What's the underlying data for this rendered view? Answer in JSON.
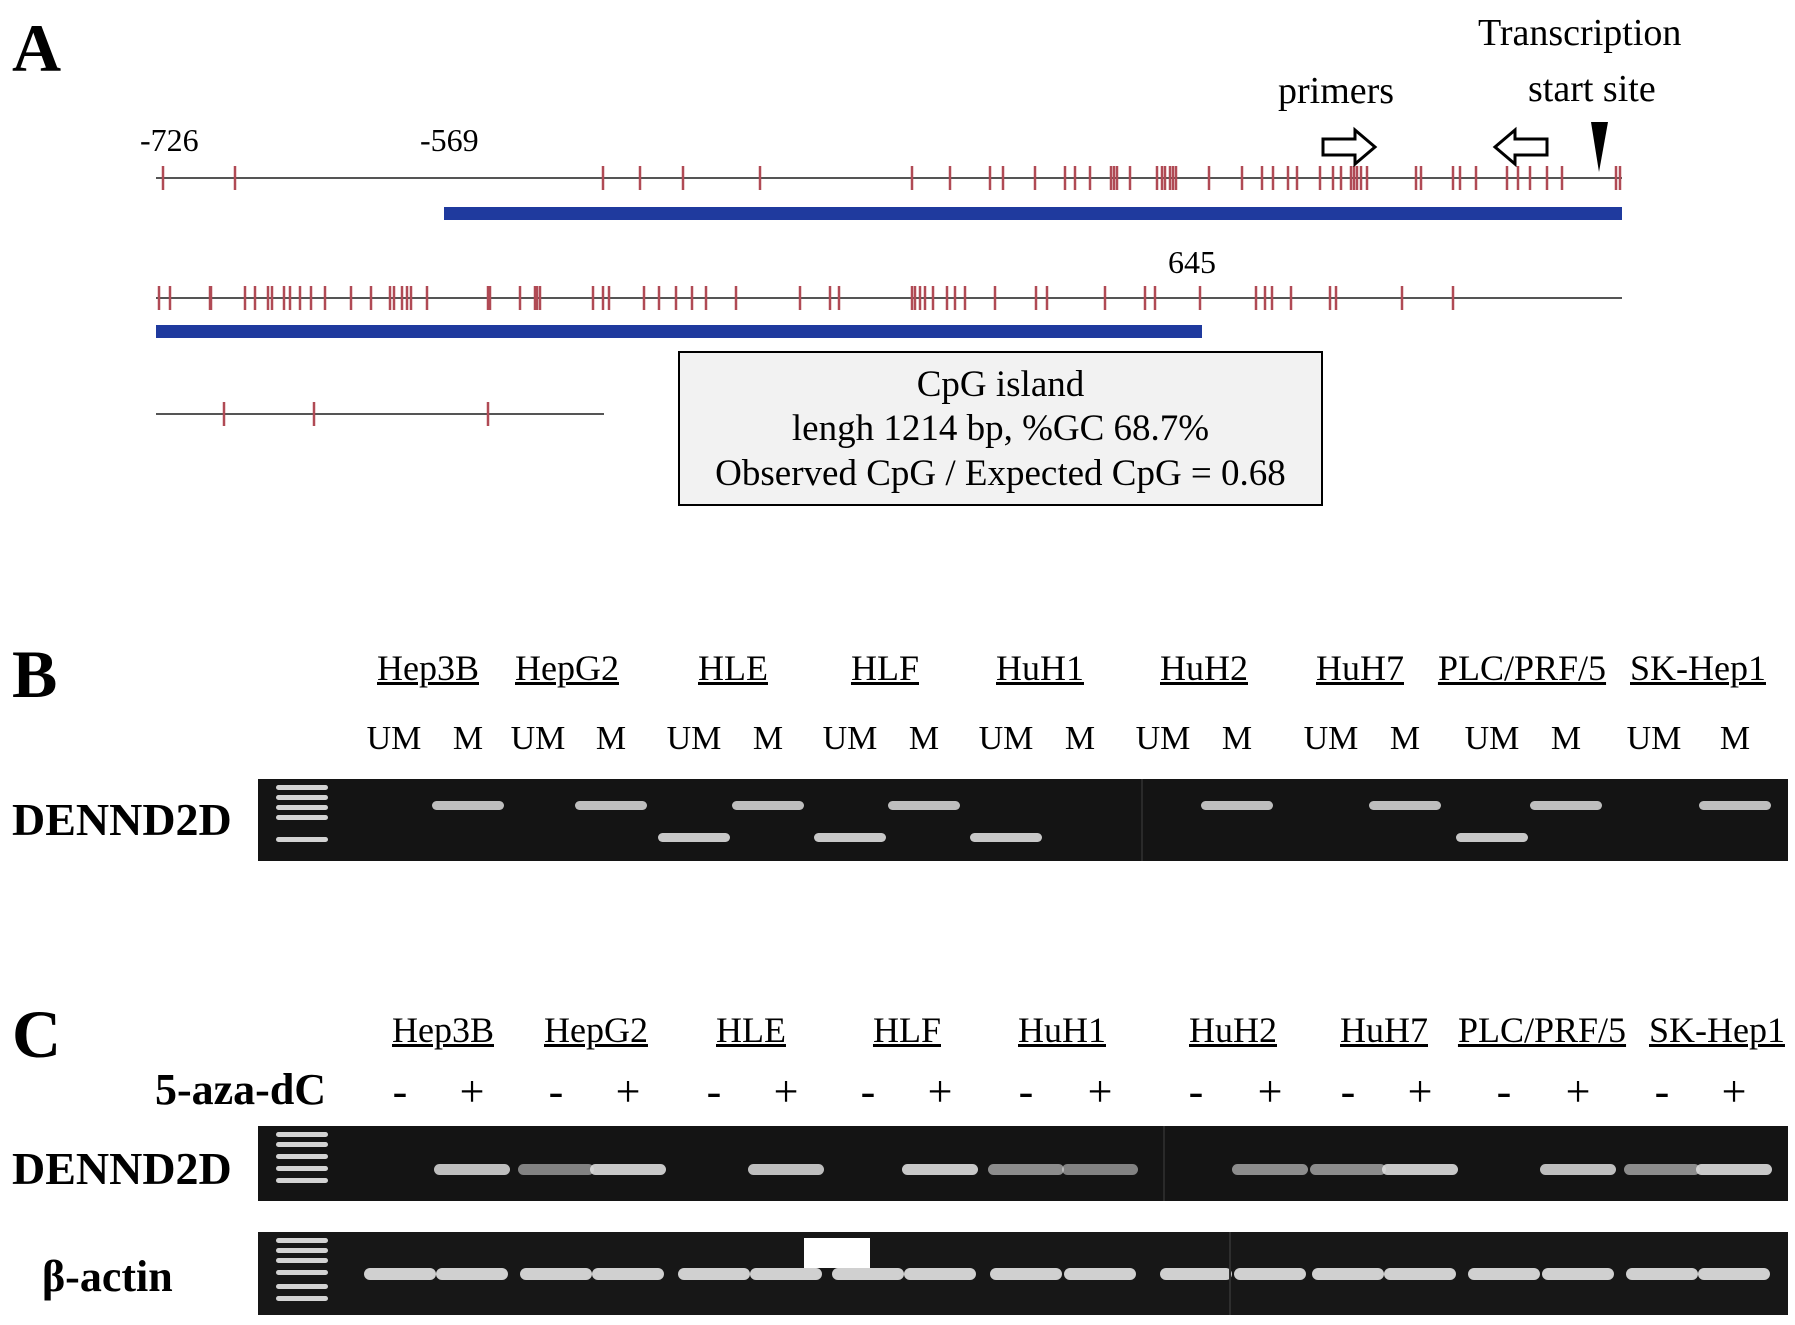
{
  "panel_a": {
    "label": "A",
    "pos_726": "-726",
    "pos_569": "-569",
    "pos_645": "645",
    "primers_label": "primers",
    "tss_line1": "Transcription",
    "tss_line2": "start site",
    "cpg_box": {
      "line1": "CpG island",
      "line2": "lengh 1214 bp, %GC 68.7%",
      "line3": "Observed CpG / Expected CpG = 0.68"
    },
    "colors": {
      "cpg_tick": "#b04a55",
      "island_bar": "#1f3a9e"
    }
  },
  "panel_b": {
    "label": "B",
    "gene": "DENND2D",
    "cell_lines": [
      "Hep3B",
      "HepG2",
      "HLE",
      "HLF",
      "HuH1",
      "HuH2",
      "HuH7",
      "PLC/PRF/5",
      "SK-Hep1"
    ],
    "lanes": [
      "UM",
      "M",
      "UM",
      "M",
      "UM",
      "M",
      "UM",
      "M",
      "UM",
      "M",
      "UM",
      "M",
      "UM",
      "M",
      "UM",
      "M",
      "UM",
      "M"
    ]
  },
  "panel_c": {
    "label": "C",
    "treatment": "5-aza-dC",
    "cell_lines": [
      "Hep3B",
      "HepG2",
      "HLE",
      "HLF",
      "HuH1",
      "HuH2",
      "HuH7",
      "PLC/PRF/5",
      "SK-Hep1"
    ],
    "lanes": [
      "-",
      "+",
      "-",
      "+",
      "-",
      "+",
      "-",
      "+",
      "-",
      "+",
      "-",
      "+",
      "-",
      "+",
      "-",
      "+",
      "-",
      "+"
    ],
    "gene": "DENND2D",
    "control": "β-actin"
  }
}
